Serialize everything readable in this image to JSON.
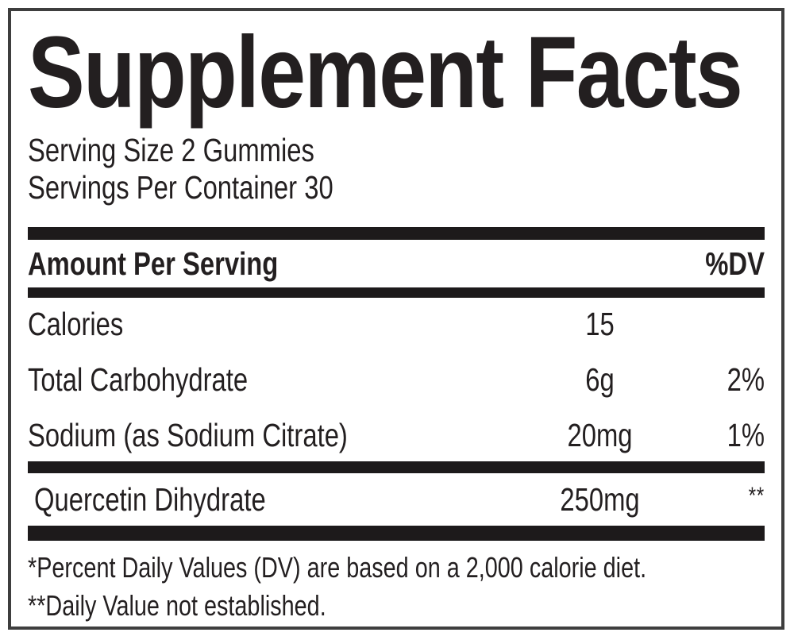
{
  "label": {
    "title": "Supplement Facts",
    "serving": {
      "size_line": "Serving Size 2 Gummies",
      "per_container_line": "Servings Per Container 30"
    },
    "header": {
      "amount_label": "Amount Per Serving",
      "dv_label": "%DV"
    },
    "rows": [
      {
        "name": "Calories",
        "amount": "15",
        "dv": ""
      },
      {
        "name": "Total Carbohydrate",
        "amount": "6g",
        "dv": "2%"
      },
      {
        "name": "Sodium (as Sodium Citrate)",
        "amount": "20mg",
        "dv": "1%"
      },
      {
        "name": "Quercetin Dihydrate",
        "amount": "250mg",
        "dv": "**"
      }
    ],
    "footnotes": [
      "*Percent Daily Values (DV) are based on a 2,000 calorie diet.",
      "**Daily Value not established."
    ],
    "colors": {
      "text": "#231f20",
      "bar": "#1d1a1b",
      "border": "#3e3e3e",
      "background": "#ffffff"
    }
  }
}
